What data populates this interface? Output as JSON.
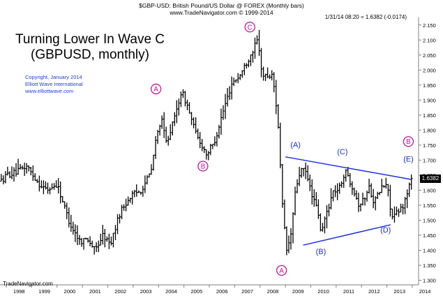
{
  "header": {
    "line1": "$GBP-USD:  British Pound/US Dollar @ FOREX  (Monthly bars)",
    "line2": "www.TradeNavigator.com © 1999-2014",
    "quote": "1/31/14 08:20 = 1.6382 (-0.0174)"
  },
  "title": {
    "line1": "Turning Lower In Wave C",
    "line2": "(GBPUSD, monthly)"
  },
  "credit": {
    "line1": "Copyright, January 2014",
    "line2": "Elliott Wave International",
    "line3": "www.elliottwave.com"
  },
  "footer": "TradeNavigator.com",
  "price_box": "1.6382",
  "colors": {
    "bars": "#000000",
    "wave_major": "#c2169a",
    "wave_minor": "#1b2fc8",
    "trendline": "#1f2fe0",
    "axis": "#808080"
  },
  "chart_data": {
    "type": "bar",
    "subtype": "ohlc",
    "interval": "monthly",
    "x_tick_labels": [
      "1998",
      "1999",
      "2000",
      "2001",
      "2002",
      "2003",
      "2004",
      "2005",
      "2006",
      "2007",
      "2008",
      "2009",
      "2010",
      "2011",
      "2012",
      "2013",
      "2014"
    ],
    "y_tick_labels": [
      "1.300",
      "1.350",
      "1.400",
      "1.450",
      "1.500",
      "1.550",
      "1.600",
      "1.650",
      "1.700",
      "1.750",
      "1.800",
      "1.850",
      "1.900",
      "1.950",
      "2.000",
      "2.050",
      "2.100",
      "2.150"
    ],
    "xlim": [
      1997.75,
      2014.25
    ],
    "ylim": [
      1.285,
      2.175
    ],
    "last_price": 1.6382,
    "price_path": [
      [
        1997.8,
        1.63
      ],
      [
        1998.0,
        1.65
      ],
      [
        1998.4,
        1.66
      ],
      [
        1998.8,
        1.68
      ],
      [
        1999.3,
        1.62
      ],
      [
        1999.6,
        1.6
      ],
      [
        2000.0,
        1.62
      ],
      [
        2000.5,
        1.49
      ],
      [
        2000.9,
        1.43
      ],
      [
        2001.2,
        1.44
      ],
      [
        2001.5,
        1.4
      ],
      [
        2001.8,
        1.45
      ],
      [
        2002.1,
        1.42
      ],
      [
        2002.5,
        1.53
      ],
      [
        2002.9,
        1.58
      ],
      [
        2003.3,
        1.6
      ],
      [
        2003.7,
        1.66
      ],
      [
        2003.9,
        1.77
      ],
      [
        2004.1,
        1.84
      ],
      [
        2004.3,
        1.76
      ],
      [
        2004.6,
        1.83
      ],
      [
        2004.9,
        1.93
      ],
      [
        2005.1,
        1.89
      ],
      [
        2005.5,
        1.78
      ],
      [
        2005.9,
        1.72
      ],
      [
        2006.2,
        1.76
      ],
      [
        2006.5,
        1.85
      ],
      [
        2006.9,
        1.96
      ],
      [
        2007.2,
        1.98
      ],
      [
        2007.5,
        2.03
      ],
      [
        2007.8,
        2.08
      ],
      [
        2007.9,
        2.1
      ],
      [
        2008.1,
        1.98
      ],
      [
        2008.5,
        1.98
      ],
      [
        2008.7,
        1.84
      ],
      [
        2008.9,
        1.52
      ],
      [
        2009.05,
        1.4
      ],
      [
        2009.2,
        1.44
      ],
      [
        2009.4,
        1.6
      ],
      [
        2009.6,
        1.67
      ],
      [
        2009.8,
        1.66
      ],
      [
        2010.0,
        1.6
      ],
      [
        2010.3,
        1.52
      ],
      [
        2010.4,
        1.45
      ],
      [
        2010.6,
        1.52
      ],
      [
        2010.9,
        1.6
      ],
      [
        2011.1,
        1.6
      ],
      [
        2011.3,
        1.65
      ],
      [
        2011.4,
        1.66
      ],
      [
        2011.7,
        1.6
      ],
      [
        2011.9,
        1.55
      ],
      [
        2012.1,
        1.57
      ],
      [
        2012.3,
        1.61
      ],
      [
        2012.5,
        1.56
      ],
      [
        2012.8,
        1.61
      ],
      [
        2013.0,
        1.62
      ],
      [
        2013.2,
        1.51
      ],
      [
        2013.5,
        1.53
      ],
      [
        2013.7,
        1.56
      ],
      [
        2013.85,
        1.61
      ],
      [
        2014.0,
        1.64
      ]
    ],
    "trendlines": [
      {
        "x1": 2009.0,
        "y1": 1.711,
        "x2": 2013.95,
        "y2": 1.636
      },
      {
        "x1": 2009.7,
        "y1": 1.417,
        "x2": 2013.15,
        "y2": 1.485
      }
    ],
    "wave_labels_major": [
      {
        "text": "A",
        "x": 2003.9,
        "y": 1.937
      },
      {
        "text": "B",
        "x": 2005.75,
        "y": 1.68
      },
      {
        "text": "C",
        "x": 2007.6,
        "y": 2.143
      },
      {
        "text": "A",
        "x": 2008.85,
        "y": 1.333
      },
      {
        "text": "B",
        "x": 2013.85,
        "y": 1.762
      }
    ],
    "wave_labels_minor": [
      {
        "text": "(A)",
        "x": 2009.4,
        "y": 1.752
      },
      {
        "text": "(C)",
        "x": 2011.25,
        "y": 1.729
      },
      {
        "text": "(E)",
        "x": 2013.85,
        "y": 1.704
      },
      {
        "text": "(D)",
        "x": 2012.95,
        "y": 1.469
      },
      {
        "text": "(B)",
        "x": 2010.4,
        "y": 1.396
      }
    ]
  }
}
